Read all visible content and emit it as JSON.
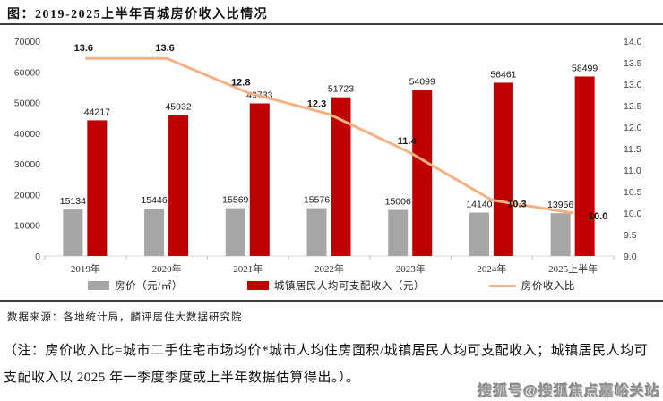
{
  "title": "图：2019-2025上半年百城房价收入比情况",
  "source": "数据来源：各地统计局，麟评居住大数据研究院",
  "note": "（注：房价收入比=城市二手住宅市场均价*城市人均住房面积/城镇居民人均可支配收入；城镇居民人均可支配收入以 2025 年一季度季度或上半年数据估算得出。）。",
  "watermark": "搜狐号@搜狐焦点嘉峪关站",
  "colors": {
    "bar_price": "#a6a6a6",
    "bar_income": "#c00000",
    "line_ratio": "#f4b183",
    "axis_text": "#404040",
    "divider": "#3d3d3d",
    "axis_line": "#d9d9d9"
  },
  "chart_data": {
    "type": "combo bar+line",
    "categories": [
      "2019年",
      "2020年",
      "2021年",
      "2022年",
      "2023年",
      "2024年",
      "2025上半年"
    ],
    "series": [
      {
        "name": "房价（元/㎡）",
        "type": "bar",
        "axis": "left",
        "values": [
          15134,
          15446,
          15569,
          15576,
          15006,
          14140,
          13956
        ]
      },
      {
        "name": "城镇居民人均可支配收入（元）",
        "type": "bar",
        "axis": "left",
        "values": [
          44217,
          45932,
          49733,
          51723,
          54099,
          56461,
          58499
        ]
      },
      {
        "name": "房价收入比",
        "type": "line",
        "axis": "right",
        "values": [
          13.6,
          13.6,
          12.8,
          12.3,
          11.4,
          10.3,
          10.0
        ]
      }
    ],
    "left_axis": {
      "min": 0,
      "max": 70000,
      "step": 10000
    },
    "right_axis": {
      "min": 9.0,
      "max": 14.0,
      "step": 0.5,
      "decimals": 1
    },
    "grid": false,
    "legend_position": "bottom"
  }
}
